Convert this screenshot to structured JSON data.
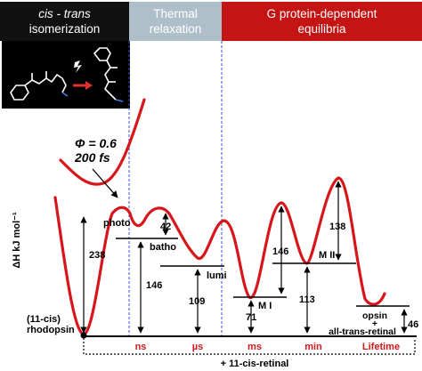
{
  "header": {
    "stage1_line1": "cis - trans",
    "stage1_line2": "isomerization",
    "stage2_line1": "Thermal",
    "stage2_line2": "relaxation",
    "stage3_line1": "G protein-dependent",
    "stage3_line2": "equilibria"
  },
  "quantum_yield": {
    "phi": "Φ = 0.6",
    "time": "200 fs"
  },
  "states": {
    "rhodopsin_line1": "(11-cis)",
    "rhodopsin_line2": "rhodopsin",
    "photo": "photo",
    "batho": "batho",
    "lumi": "lumi",
    "m1": "M I",
    "m2": "M II",
    "opsin_line1": "opsin",
    "opsin_line2": "+",
    "opsin_line3": "all-trans-retinal"
  },
  "energies": {
    "photo_rel": "238",
    "batho_rel": "146",
    "batho_barrier": "42",
    "lumi_rel": "109",
    "m1_rel": "71",
    "m1_barrier": "146",
    "m2_rel": "113",
    "m2_barrier": "138",
    "opsin_rel": "46"
  },
  "axis": {
    "ylabel": "ΔH kJ mol⁻¹",
    "time_ticks": [
      "ns",
      "µs",
      "ms",
      "min",
      "Lifetime"
    ],
    "bottom_label": "+ 11-cis-retinal"
  },
  "colors": {
    "curve": "#d6161b",
    "stage1": "#111111",
    "stage2": "#aebfca",
    "stage3": "#c51414",
    "divider": "#3a4fd6"
  }
}
